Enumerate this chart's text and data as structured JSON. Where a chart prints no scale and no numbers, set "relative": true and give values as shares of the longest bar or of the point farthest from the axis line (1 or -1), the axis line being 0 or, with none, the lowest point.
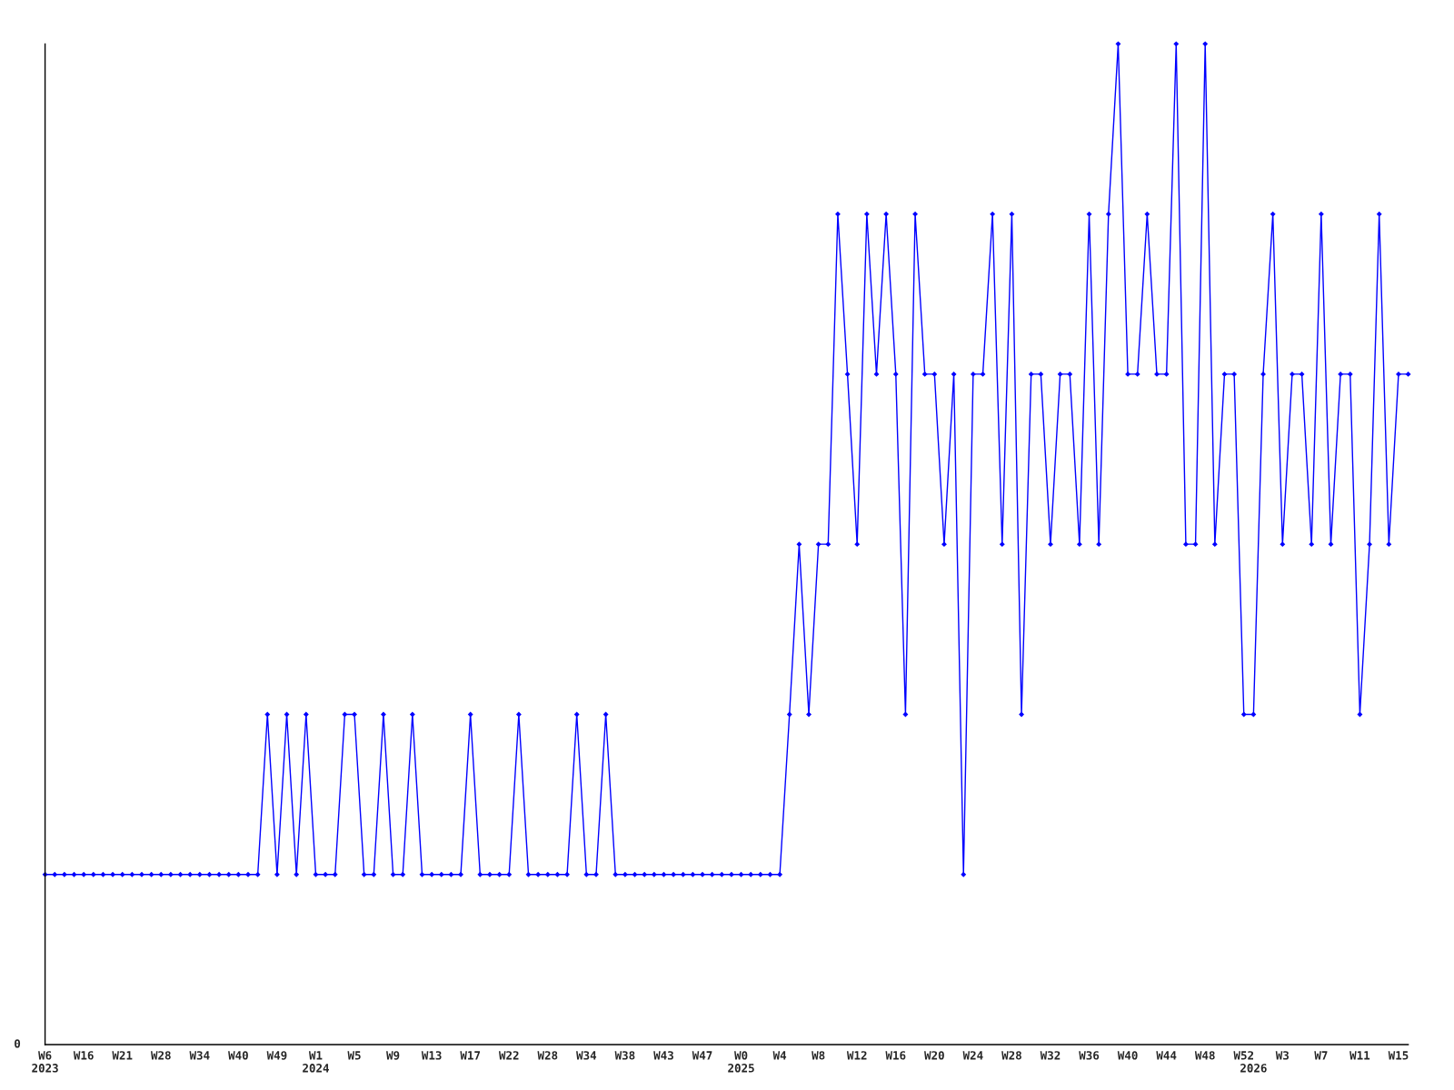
{
  "chart_data": {
    "type": "line",
    "relative": true,
    "color": "#0000ff",
    "marker": "diamond",
    "line_style": "solid",
    "grid": false,
    "legend": false,
    "annotations": [
      "0"
    ],
    "categories": [
      "W6\n2023",
      null,
      null,
      null,
      "W16",
      null,
      null,
      null,
      "W21",
      null,
      null,
      null,
      "W28",
      null,
      null,
      null,
      "W34",
      null,
      null,
      null,
      "W40",
      null,
      null,
      null,
      "W49",
      null,
      null,
      null,
      "W1\n2024",
      null,
      null,
      null,
      "W5",
      null,
      null,
      null,
      "W9",
      null,
      null,
      null,
      "W13",
      null,
      null,
      null,
      "W17",
      null,
      null,
      null,
      "W22",
      null,
      null,
      null,
      "W28",
      null,
      null,
      null,
      "W34",
      null,
      null,
      null,
      "W38",
      null,
      null,
      null,
      "W43",
      null,
      null,
      null,
      "W47",
      null,
      null,
      null,
      "W0\n2025",
      null,
      null,
      null,
      "W4",
      null,
      null,
      null,
      "W8",
      null,
      null,
      null,
      "W12",
      null,
      null,
      null,
      "W16",
      null,
      null,
      null,
      "W20",
      null,
      null,
      null,
      "W24",
      null,
      null,
      null,
      "W28",
      null,
      null,
      null,
      "W32",
      null,
      null,
      null,
      "W36",
      null,
      null,
      null,
      "W40",
      null,
      null,
      null,
      "W44",
      null,
      null,
      null,
      "W48",
      null,
      null,
      null,
      "W52",
      "\n2026",
      null,
      null,
      "W3",
      null,
      null,
      null,
      "W7",
      null,
      null,
      null,
      "W11",
      null,
      null,
      null,
      "W15",
      null
    ],
    "values": [
      0.17,
      0.17,
      0.17,
      0.17,
      0.17,
      0.17,
      0.17,
      0.17,
      0.17,
      0.17,
      0.17,
      0.17,
      0.17,
      0.17,
      0.17,
      0.17,
      0.17,
      0.17,
      0.17,
      0.17,
      0.17,
      0.17,
      0.17,
      0.33,
      0.17,
      0.33,
      0.17,
      0.33,
      0.17,
      0.17,
      0.17,
      0.33,
      0.33,
      0.17,
      0.17,
      0.33,
      0.17,
      0.17,
      0.33,
      0.17,
      0.17,
      0.17,
      0.17,
      0.17,
      0.33,
      0.17,
      0.17,
      0.17,
      0.17,
      0.33,
      0.17,
      0.17,
      0.17,
      0.17,
      0.17,
      0.33,
      0.17,
      0.17,
      0.33,
      0.17,
      0.17,
      0.17,
      0.17,
      0.17,
      0.17,
      0.17,
      0.17,
      0.17,
      0.17,
      0.17,
      0.17,
      0.17,
      0.17,
      0.17,
      0.17,
      0.17,
      0.17,
      0.33,
      0.5,
      0.33,
      0.5,
      0.5,
      0.83,
      0.67,
      0.5,
      0.83,
      0.67,
      0.83,
      0.67,
      0.33,
      0.83,
      0.67,
      0.67,
      0.5,
      0.67,
      0.17,
      0.67,
      0.67,
      0.83,
      0.5,
      0.83,
      0.33,
      0.67,
      0.67,
      0.5,
      0.67,
      0.67,
      0.5,
      0.83,
      0.5,
      0.83,
      1,
      0.67,
      0.67,
      0.83,
      0.67,
      0.67,
      1,
      0.5,
      0.5,
      1,
      0.5,
      0.67,
      0.67,
      0.33,
      0.33,
      0.67,
      0.83,
      0.5,
      0.67,
      0.67,
      0.5,
      0.83,
      0.5,
      0.67,
      0.67,
      0.33,
      0.5,
      0.83,
      0.5,
      0.67,
      0.67
    ]
  }
}
